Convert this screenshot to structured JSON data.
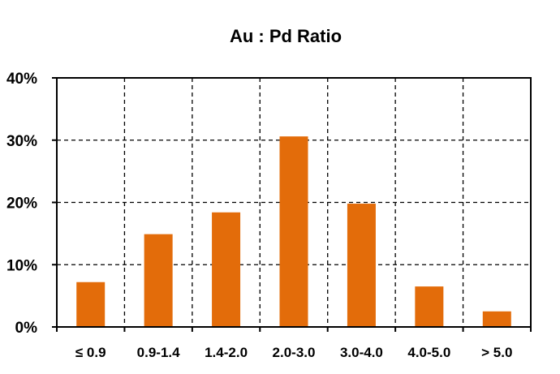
{
  "chart_data": {
    "type": "bar",
    "title": "Au : Pd  Ratio",
    "xlabel": "",
    "ylabel": "",
    "categories": [
      "≤ 0.9",
      "0.9-1.4",
      "1.4-2.0",
      "2.0-3.0",
      "3.0-4.0",
      "4.0-5.0",
      "> 5.0"
    ],
    "values": [
      7.2,
      14.9,
      18.4,
      30.6,
      19.8,
      6.5,
      2.5
    ],
    "ylim": [
      0,
      40
    ],
    "yticks": [
      0,
      10,
      20,
      30,
      40
    ],
    "ytick_labels": [
      "0%",
      "10%",
      "20%",
      "30%",
      "40%"
    ],
    "grid": "dashed, both axes",
    "bar_color": "#E36C0A",
    "legend": "none"
  }
}
